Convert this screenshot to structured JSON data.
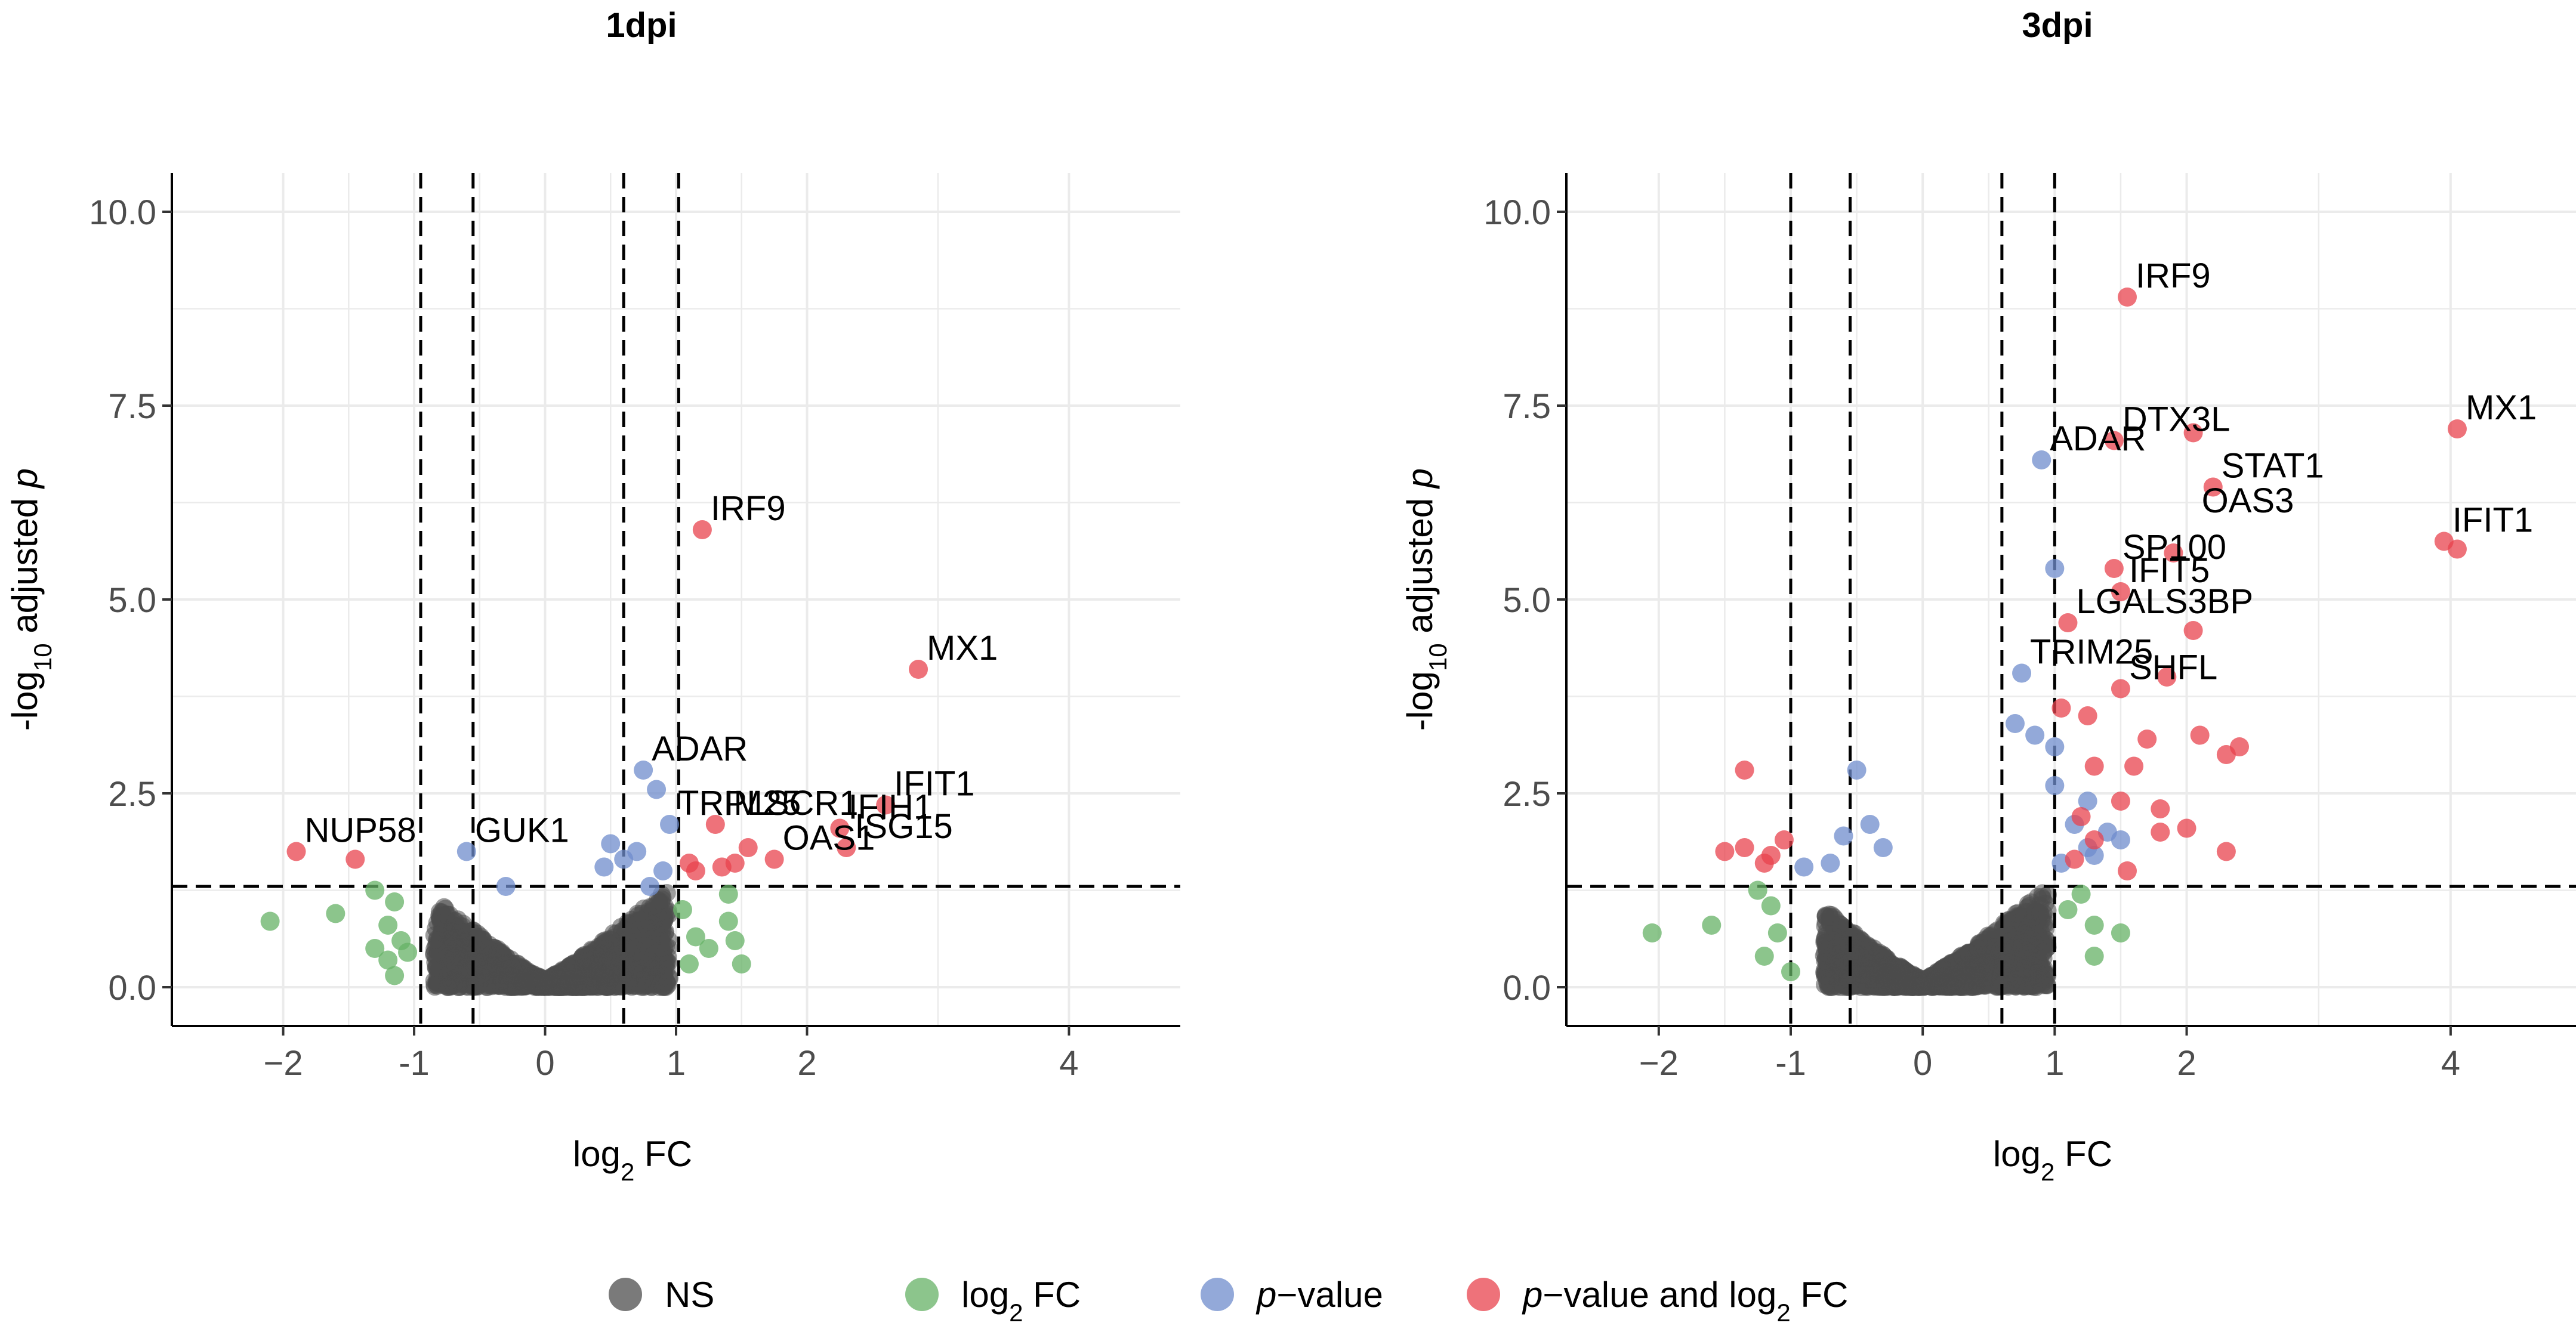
{
  "chart_data": [
    {
      "type": "scatter",
      "title": "1dpi",
      "xlabel": "log2 FC",
      "ylabel": "-log10 adjusted p",
      "xlim": [
        -2.85,
        4.85
      ],
      "ylim": [
        -0.5,
        10.5
      ],
      "xticks": [
        -2,
        -1,
        0,
        1,
        2,
        4
      ],
      "xtick_labels": [
        "−2",
        "-1",
        "0",
        "1",
        "2",
        "4"
      ],
      "yticks": [
        0,
        2.5,
        5,
        7.5,
        10
      ],
      "ytick_labels": [
        "0.0",
        "2.5",
        "5.0",
        "7.5",
        "10.0"
      ],
      "fc_cutoffs": [
        -0.95,
        -0.55,
        0.6,
        1.02
      ],
      "p_cutoff": 1.3,
      "ns_shape": {
        "x_min": -0.85,
        "x_max": 0.95,
        "y_max": 1.3
      },
      "points": {
        "fc": [
          [
            -2.1,
            0.85
          ],
          [
            -1.6,
            0.95
          ],
          [
            -1.3,
            1.25
          ],
          [
            -1.15,
            1.1
          ],
          [
            -1.2,
            0.8
          ],
          [
            -1.3,
            0.5
          ],
          [
            -1.2,
            0.35
          ],
          [
            -1.05,
            0.45
          ],
          [
            -1.15,
            0.15
          ],
          [
            -1.1,
            0.6
          ],
          [
            1.1,
            0.3
          ],
          [
            1.25,
            0.5
          ],
          [
            1.45,
            0.6
          ],
          [
            1.5,
            0.3
          ],
          [
            1.4,
            0.85
          ],
          [
            1.15,
            0.65
          ],
          [
            1.05,
            1.0
          ],
          [
            1.4,
            1.2
          ]
        ],
        "p": [
          [
            -0.6,
            1.75
          ],
          [
            -0.3,
            1.3
          ],
          [
            0.45,
            1.55
          ],
          [
            0.5,
            1.85
          ],
          [
            0.6,
            1.65
          ],
          [
            0.7,
            1.75
          ],
          [
            0.75,
            2.8
          ],
          [
            0.85,
            2.55
          ],
          [
            0.95,
            2.1
          ],
          [
            0.8,
            1.3
          ],
          [
            0.9,
            1.5
          ]
        ],
        "pfc": [
          [
            -1.9,
            1.75
          ],
          [
            -1.45,
            1.65
          ],
          [
            1.2,
            5.9
          ],
          [
            2.85,
            4.1
          ],
          [
            2.6,
            2.35
          ],
          [
            2.25,
            2.05
          ],
          [
            2.3,
            1.8
          ],
          [
            1.75,
            1.65
          ],
          [
            1.35,
            1.55
          ],
          [
            1.1,
            1.6
          ],
          [
            1.15,
            1.5
          ],
          [
            1.3,
            2.1
          ],
          [
            1.45,
            1.6
          ],
          [
            1.55,
            1.8
          ]
        ]
      },
      "labels": [
        {
          "text": "IRF9",
          "x": 1.2,
          "y": 5.9
        },
        {
          "text": "MX1",
          "x": 2.85,
          "y": 4.1
        },
        {
          "text": "ADAR",
          "x": 0.75,
          "y": 2.8
        },
        {
          "text": "IFIT1",
          "x": 2.6,
          "y": 2.35
        },
        {
          "text": "PLSCR1",
          "x": 1.3,
          "y": 2.1
        },
        {
          "text": "IFIH1",
          "x": 2.25,
          "y": 2.05
        },
        {
          "text": "ISG15",
          "x": 2.3,
          "y": 1.8
        },
        {
          "text": "NUP58",
          "x": -1.9,
          "y": 1.75
        },
        {
          "text": "GUK1",
          "x": -0.6,
          "y": 1.75
        },
        {
          "text": "TRIM25",
          "x": 0.95,
          "y": 2.1
        },
        {
          "text": "OAS1",
          "x": 1.75,
          "y": 1.65
        }
      ]
    },
    {
      "type": "scatter",
      "title": "3dpi",
      "xlabel": "log2 FC",
      "ylabel": "-log10 adjusted p",
      "xlim": [
        -2.7,
        4.95
      ],
      "ylim": [
        -0.5,
        10.5
      ],
      "xticks": [
        -2,
        -1,
        0,
        1,
        2,
        4
      ],
      "xtick_labels": [
        "−2",
        "-1",
        "0",
        "1",
        "2",
        "4"
      ],
      "yticks": [
        0,
        2.5,
        5,
        7.5,
        10
      ],
      "ytick_labels": [
        "0.0",
        "2.5",
        "5.0",
        "7.5",
        "10.0"
      ],
      "fc_cutoffs": [
        -1.0,
        -0.55,
        0.6,
        1.0
      ],
      "p_cutoff": 1.3,
      "ns_shape": {
        "x_min": -0.75,
        "x_max": 0.95,
        "y_max": 1.3
      },
      "points": {
        "fc": [
          [
            -2.05,
            0.7
          ],
          [
            -1.6,
            0.8
          ],
          [
            -1.25,
            1.25
          ],
          [
            -1.15,
            1.05
          ],
          [
            -1.1,
            0.7
          ],
          [
            -1.0,
            0.2
          ],
          [
            -1.2,
            0.4
          ],
          [
            1.1,
            1.0
          ],
          [
            1.3,
            0.8
          ],
          [
            1.3,
            0.4
          ],
          [
            1.5,
            0.7
          ],
          [
            1.2,
            1.2
          ]
        ],
        "p": [
          [
            -0.9,
            1.55
          ],
          [
            -0.7,
            1.6
          ],
          [
            -0.6,
            1.95
          ],
          [
            -0.4,
            2.1
          ],
          [
            -0.3,
            1.8
          ],
          [
            -0.5,
            2.8
          ],
          [
            0.7,
            3.4
          ],
          [
            0.85,
            3.25
          ],
          [
            1.0,
            3.1
          ],
          [
            1.0,
            2.6
          ],
          [
            1.25,
            2.4
          ],
          [
            1.15,
            2.1
          ],
          [
            1.4,
            2.0
          ],
          [
            1.25,
            1.8
          ],
          [
            1.5,
            1.9
          ],
          [
            1.0,
            5.4
          ],
          [
            0.75,
            4.05
          ],
          [
            0.9,
            6.8
          ],
          [
            1.05,
            1.6
          ],
          [
            1.3,
            1.7
          ]
        ],
        "pfc": [
          [
            -1.5,
            1.75
          ],
          [
            -1.35,
            1.8
          ],
          [
            -1.2,
            1.6
          ],
          [
            -1.15,
            1.7
          ],
          [
            -1.05,
            1.9
          ],
          [
            -1.35,
            2.8
          ],
          [
            1.3,
            1.9
          ],
          [
            1.55,
            8.9
          ],
          [
            1.45,
            7.05
          ],
          [
            2.05,
            7.15
          ],
          [
            2.2,
            6.45
          ],
          [
            4.05,
            7.2
          ],
          [
            3.95,
            5.75
          ],
          [
            4.05,
            5.65
          ],
          [
            1.9,
            5.6
          ],
          [
            1.45,
            5.4
          ],
          [
            1.5,
            5.1
          ],
          [
            1.1,
            4.7
          ],
          [
            2.05,
            4.6
          ],
          [
            1.85,
            4.0
          ],
          [
            1.5,
            3.85
          ],
          [
            1.25,
            3.5
          ],
          [
            1.05,
            3.6
          ],
          [
            1.7,
            3.2
          ],
          [
            2.1,
            3.25
          ],
          [
            2.3,
            3.0
          ],
          [
            2.4,
            3.1
          ],
          [
            1.3,
            2.85
          ],
          [
            1.6,
            2.85
          ],
          [
            1.5,
            2.4
          ],
          [
            1.8,
            2.3
          ],
          [
            1.8,
            2.0
          ],
          [
            2.0,
            2.05
          ],
          [
            2.3,
            1.75
          ],
          [
            1.55,
            1.5
          ],
          [
            1.2,
            2.2
          ],
          [
            1.15,
            1.65
          ]
        ]
      },
      "labels": [
        {
          "text": "IRF9",
          "x": 1.55,
          "y": 8.9
        },
        {
          "text": "DTX3L",
          "x": 1.45,
          "y": 7.05
        },
        {
          "text": "MX1",
          "x": 4.05,
          "y": 7.2
        },
        {
          "text": "ADAR",
          "x": 0.9,
          "y": 6.8
        },
        {
          "text": "STAT1",
          "x": 2.2,
          "y": 6.45
        },
        {
          "text": "OAS3",
          "x": 2.05,
          "y": 6.0
        },
        {
          "text": "IFIT1",
          "x": 3.95,
          "y": 5.75
        },
        {
          "text": "SP100",
          "x": 1.45,
          "y": 5.4
        },
        {
          "text": "IFIT5",
          "x": 1.5,
          "y": 5.1
        },
        {
          "text": "LGALS3BP",
          "x": 1.1,
          "y": 4.7
        },
        {
          "text": "TRIM25",
          "x": 0.75,
          "y": 4.05
        },
        {
          "text": "SHFL",
          "x": 1.5,
          "y": 3.85
        }
      ]
    }
  ],
  "legend": {
    "items": [
      {
        "key": "ns",
        "label": "NS",
        "color": "#4d4d4d"
      },
      {
        "key": "fc",
        "label": "log2 FC",
        "color": "#66b266"
      },
      {
        "key": "p",
        "label": "p−value",
        "color": "#6f8ccc"
      },
      {
        "key": "pfc",
        "label": "p−value and log2 FC",
        "color": "#e8434d"
      }
    ]
  },
  "colors": {
    "ns": "#4d4d4d",
    "fc": "#66b266",
    "p": "#6f8ccc",
    "pfc": "#e8434d",
    "grid": "#ebebeb"
  }
}
